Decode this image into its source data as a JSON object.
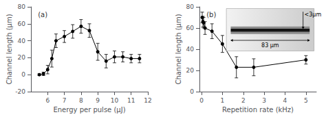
{
  "chart_data": [
    {
      "type": "line",
      "title": "(a)",
      "x": [
        5.5,
        5.75,
        6.0,
        6.25,
        6.5,
        7.0,
        7.5,
        8.0,
        8.5,
        9.0,
        9.5,
        10.0,
        10.5,
        11.0,
        11.5
      ],
      "values": [
        0,
        1,
        6,
        19,
        40,
        45,
        51,
        57,
        52,
        27,
        16,
        21,
        21,
        19,
        19
      ],
      "yerr": [
        1,
        2,
        5,
        10,
        8,
        7,
        8,
        8,
        8,
        10,
        8,
        7,
        6,
        5,
        5
      ],
      "xlabel": "Energy per pulse (μJ)",
      "ylabel": "Channel length (μm)",
      "xlim": [
        5,
        12
      ],
      "ylim": [
        -20,
        80
      ],
      "xticks": [
        6,
        7,
        8,
        9,
        10,
        11,
        12
      ],
      "yticks": [
        -20,
        0,
        20,
        40,
        60,
        80
      ],
      "color": "#000000",
      "marker": "circle",
      "line_style": "solid",
      "grid": false
    },
    {
      "type": "line",
      "title": "(b)",
      "x": [
        0.033,
        0.067,
        0.1,
        0.167,
        0.5,
        1.0,
        1.67,
        2.5,
        5.0
      ],
      "values": [
        70,
        66,
        65,
        60,
        57,
        45,
        23,
        23,
        30
      ],
      "yerr": [
        5,
        5,
        5,
        6,
        7,
        8,
        10,
        8,
        4
      ],
      "xlabel": "Repetition rate (kHz)",
      "ylabel": "Channel length (μm)",
      "xlim": [
        -0.1,
        5.5
      ],
      "ylim": [
        0,
        80
      ],
      "xticks": [
        0,
        1,
        2,
        3,
        4,
        5
      ],
      "yticks": [
        0,
        20,
        40,
        60,
        80
      ],
      "annotations": [
        "<3μm",
        "83 μm"
      ],
      "color": "#000000",
      "marker": "circle",
      "line_style": "solid",
      "grid": false
    }
  ]
}
